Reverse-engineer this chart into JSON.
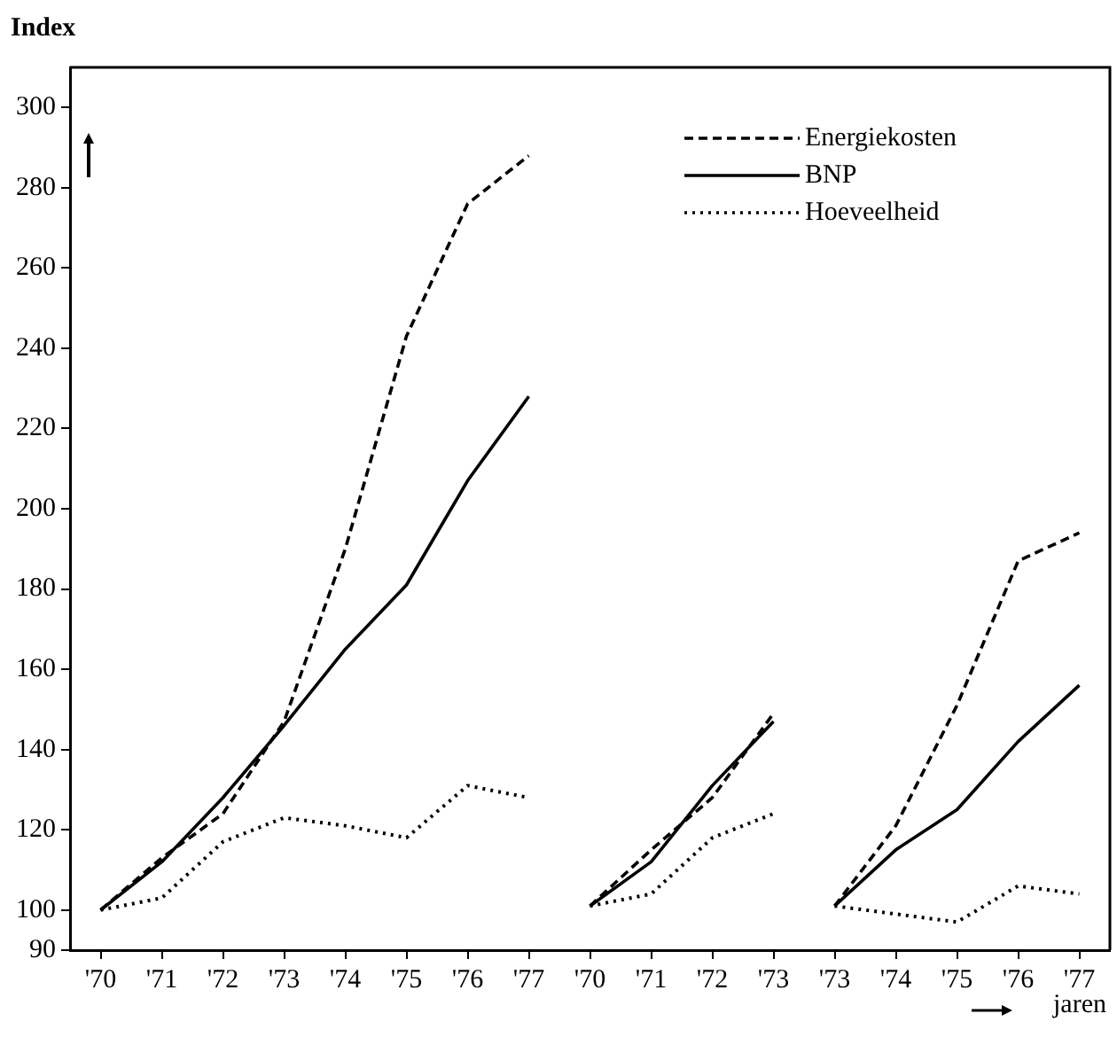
{
  "chart_data": {
    "type": "line",
    "ylabel": "Index",
    "xlabel": "jaren",
    "categories": [
      "'70",
      "'71",
      "'72",
      "'73",
      "'74",
      "'75",
      "'76",
      "'77",
      "'70",
      "'71",
      "'72",
      "'73",
      "'73",
      "'74",
      "'75",
      "'76",
      "'77"
    ],
    "series": [
      {
        "name": "Energiekosten",
        "color": "#000000",
        "line_style": "dashed",
        "values": [
          100,
          113,
          124,
          147,
          190,
          243,
          276,
          288,
          null,
          null,
          null,
          null,
          null,
          null,
          null,
          null,
          null
        ]
      },
      {
        "name": "BNP",
        "color": "#000000",
        "line_style": "solid",
        "values": [
          100,
          112,
          128,
          146,
          165,
          181,
          207,
          228,
          null,
          null,
          null,
          null,
          null,
          null,
          null,
          null,
          null
        ]
      },
      {
        "name": "Hoeveelheid",
        "color": "#000000",
        "line_style": "dotted",
        "values": [
          100,
          103,
          117,
          123,
          121,
          118,
          131,
          128,
          null,
          null,
          null,
          null,
          null,
          null,
          null,
          null,
          null
        ]
      },
      {
        "color": "#000000",
        "line_style": "dashed",
        "values": [
          null,
          null,
          null,
          null,
          null,
          null,
          null,
          null,
          101,
          115,
          128,
          149,
          null,
          null,
          null,
          null,
          null
        ]
      },
      {
        "color": "#000000",
        "line_style": "solid",
        "values": [
          null,
          null,
          null,
          null,
          null,
          null,
          null,
          null,
          101,
          112,
          131,
          147,
          null,
          null,
          null,
          null,
          null
        ]
      },
      {
        "color": "#000000",
        "line_style": "dotted",
        "values": [
          null,
          null,
          null,
          null,
          null,
          null,
          null,
          null,
          101,
          104,
          118,
          124,
          null,
          null,
          null,
          null,
          null
        ]
      },
      {
        "color": "#000000",
        "line_style": "dashed",
        "values": [
          null,
          null,
          null,
          null,
          null,
          null,
          null,
          null,
          null,
          null,
          null,
          null,
          101,
          121,
          151,
          187,
          194
        ]
      },
      {
        "color": "#000000",
        "line_style": "solid",
        "values": [
          null,
          null,
          null,
          null,
          null,
          null,
          null,
          null,
          null,
          null,
          null,
          null,
          101,
          115,
          125,
          142,
          156
        ]
      },
      {
        "color": "#000000",
        "line_style": "dotted",
        "values": [
          null,
          null,
          null,
          null,
          null,
          null,
          null,
          null,
          null,
          null,
          null,
          null,
          101,
          99,
          97,
          106,
          104
        ]
      }
    ],
    "ylim": [
      90,
      310
    ],
    "yticks": [
      90,
      100,
      120,
      140,
      160,
      180,
      200,
      220,
      240,
      260,
      280,
      300
    ],
    "grid": false,
    "legend": "top right",
    "marker": "none"
  }
}
